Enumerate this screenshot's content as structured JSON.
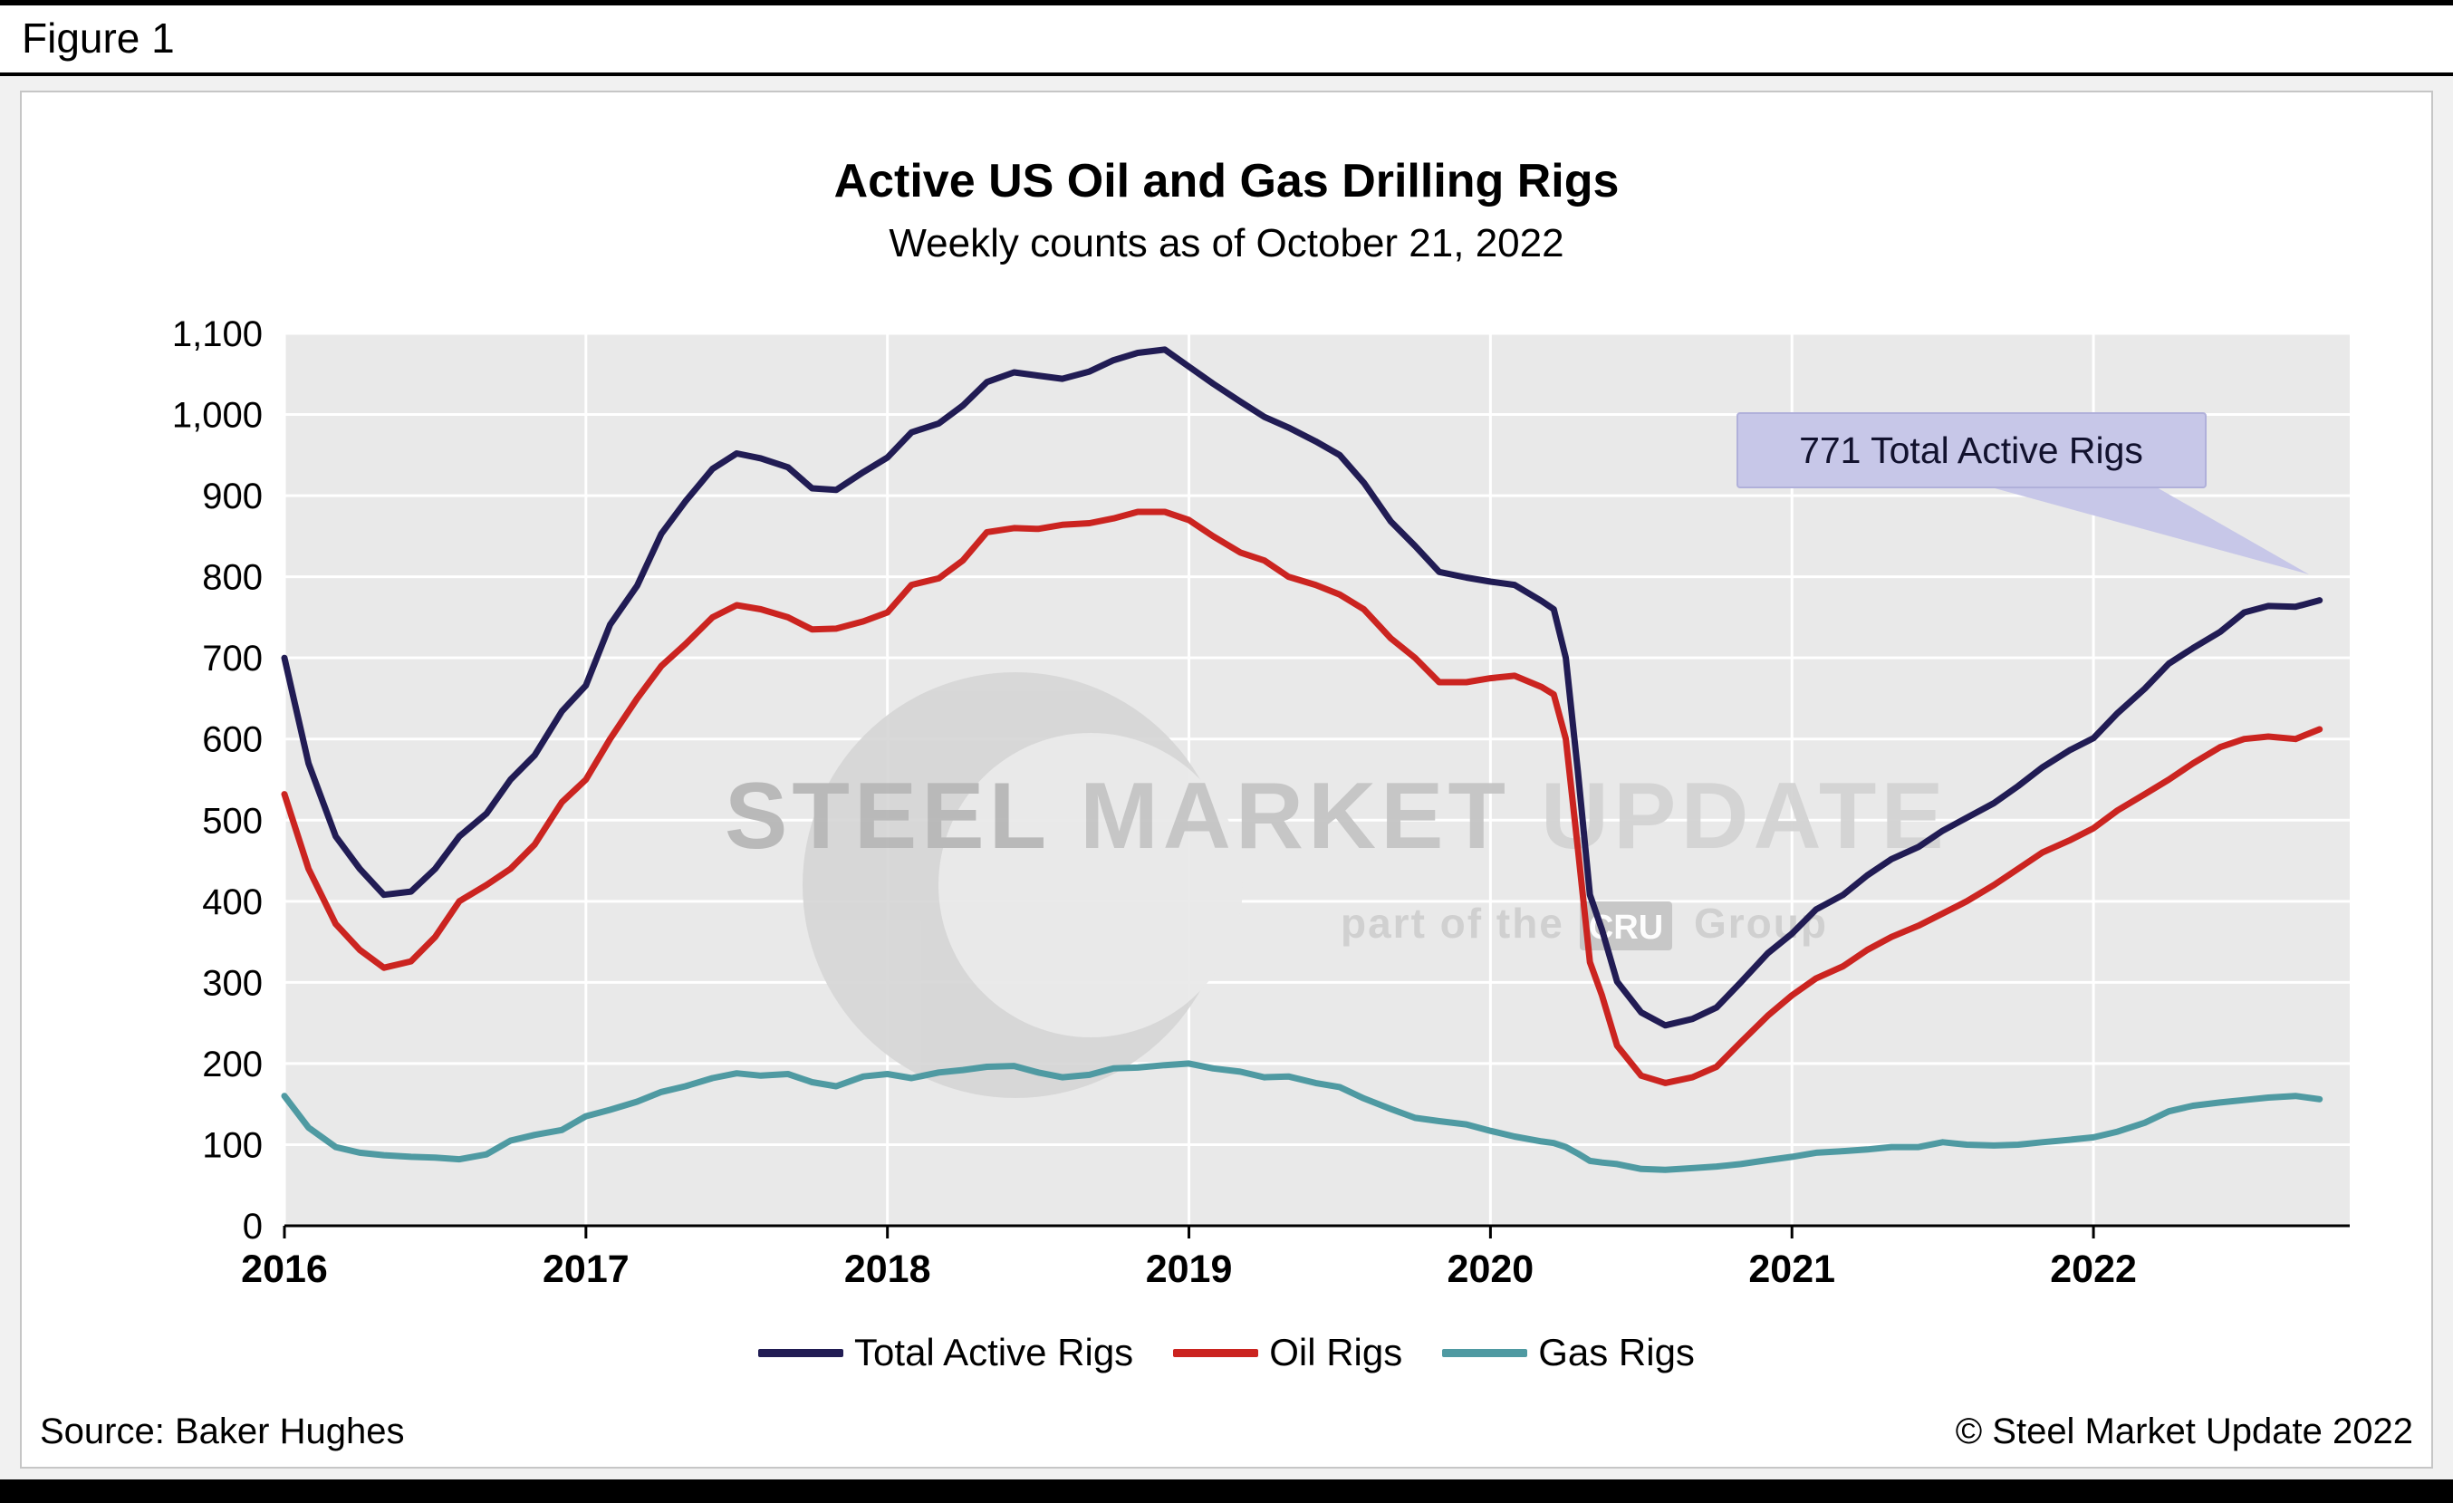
{
  "figure_label": "Figure 1",
  "watermark": {
    "words": [
      "STEEL",
      "MARKET",
      "UPDATE"
    ],
    "tagline_prefix": "part of the",
    "tagline_box": "CRU",
    "tagline_suffix": "Group"
  },
  "footer": {
    "source": "Source: Baker Hughes",
    "copyright": "© Steel Market Update 2022"
  },
  "chart_data": {
    "type": "line",
    "title": "Active US Oil and Gas Drilling Rigs",
    "subtitle": "Weekly counts as of October 21, 2022",
    "xlabel": "",
    "ylabel": "",
    "x_range": [
      2016,
      2022.85
    ],
    "y_range": [
      0,
      1100
    ],
    "x_ticks": [
      2016,
      2017,
      2018,
      2019,
      2020,
      2021,
      2022
    ],
    "y_ticks": [
      0,
      100,
      200,
      300,
      400,
      500,
      600,
      700,
      800,
      900,
      1000,
      1100
    ],
    "grid": true,
    "legend_position": "bottom",
    "annotation": {
      "text": "771 Total Active Rigs",
      "value": 771,
      "x": 2022.75
    },
    "x": [
      2016.0,
      2016.08,
      2016.17,
      2016.25,
      2016.33,
      2016.42,
      2016.5,
      2016.58,
      2016.67,
      2016.75,
      2016.83,
      2016.92,
      2017.0,
      2017.08,
      2017.17,
      2017.25,
      2017.33,
      2017.42,
      2017.5,
      2017.58,
      2017.67,
      2017.75,
      2017.83,
      2017.92,
      2018.0,
      2018.08,
      2018.17,
      2018.25,
      2018.33,
      2018.42,
      2018.5,
      2018.58,
      2018.67,
      2018.75,
      2018.83,
      2018.92,
      2019.0,
      2019.08,
      2019.17,
      2019.25,
      2019.33,
      2019.42,
      2019.5,
      2019.58,
      2019.67,
      2019.75,
      2019.83,
      2019.92,
      2020.0,
      2020.08,
      2020.17,
      2020.21,
      2020.25,
      2020.29,
      2020.33,
      2020.37,
      2020.42,
      2020.5,
      2020.58,
      2020.67,
      2020.75,
      2020.83,
      2020.92,
      2021.0,
      2021.08,
      2021.17,
      2021.25,
      2021.33,
      2021.42,
      2021.5,
      2021.58,
      2021.67,
      2021.75,
      2021.83,
      2021.92,
      2022.0,
      2022.08,
      2022.17,
      2022.25,
      2022.33,
      2022.42,
      2022.5,
      2022.58,
      2022.67,
      2022.75
    ],
    "series": [
      {
        "name": "Total Active Rigs",
        "color": "#211c54",
        "values": [
          700,
          570,
          480,
          440,
          408,
          412,
          440,
          480,
          508,
          550,
          580,
          634,
          666,
          741,
          789,
          853,
          893,
          933,
          952,
          946,
          935,
          909,
          907,
          929,
          947,
          978,
          989,
          1011,
          1040,
          1052,
          1048,
          1044,
          1053,
          1067,
          1076,
          1080,
          1059,
          1038,
          1016,
          997,
          984,
          967,
          950,
          916,
          868,
          838,
          806,
          799,
          794,
          790,
          770,
          760,
          700,
          560,
          408,
          365,
          301,
          263,
          247,
          255,
          269,
          300,
          336,
          360,
          390,
          408,
          432,
          452,
          467,
          487,
          503,
          521,
          542,
          565,
          586,
          601,
          632,
          662,
          693,
          712,
          732,
          756,
          764,
          763,
          771
        ]
      },
      {
        "name": "Oil Rigs",
        "color": "#cb2420",
        "values": [
          532,
          440,
          372,
          340,
          318,
          326,
          356,
          400,
          420,
          440,
          470,
          522,
          550,
          600,
          650,
          690,
          717,
          750,
          765,
          760,
          750,
          735,
          736,
          745,
          756,
          790,
          798,
          820,
          855,
          860,
          859,
          864,
          866,
          872,
          880,
          880,
          870,
          850,
          830,
          820,
          800,
          790,
          778,
          760,
          724,
          700,
          670,
          670,
          675,
          678,
          664,
          655,
          600,
          465,
          325,
          284,
          222,
          185,
          176,
          183,
          196,
          226,
          259,
          284,
          305,
          320,
          340,
          356,
          370,
          385,
          400,
          420,
          440,
          460,
          475,
          490,
          512,
          532,
          550,
          570,
          590,
          600,
          603,
          600,
          612
        ]
      },
      {
        "name": "Gas Rigs",
        "color": "#4f9aa2",
        "values": [
          160,
          121,
          97,
          90,
          87,
          85,
          84,
          82,
          88,
          105,
          112,
          118,
          135,
          143,
          153,
          165,
          172,
          182,
          188,
          185,
          187,
          177,
          172,
          184,
          187,
          182,
          189,
          192,
          196,
          197,
          189,
          183,
          186,
          194,
          195,
          198,
          200,
          194,
          190,
          183,
          184,
          176,
          171,
          157,
          144,
          133,
          129,
          125,
          117,
          110,
          104,
          102,
          97,
          89,
          80,
          78,
          76,
          70,
          69,
          71,
          73,
          76,
          81,
          85,
          90,
          92,
          94,
          97,
          97,
          103,
          100,
          99,
          100,
          103,
          106,
          109,
          116,
          127,
          141,
          148,
          152,
          155,
          158,
          160,
          156
        ]
      }
    ]
  }
}
